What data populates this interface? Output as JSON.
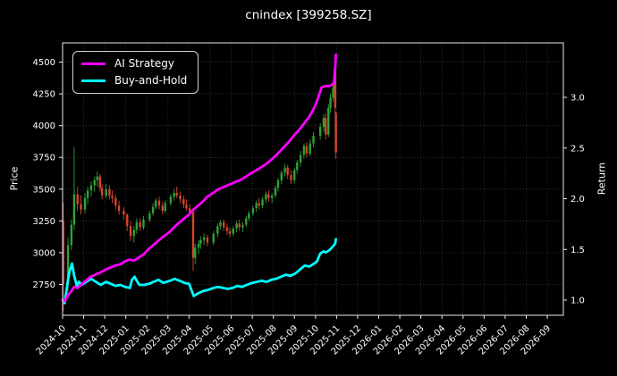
{
  "chart_data": {
    "type": "candlestick+line",
    "title": "cnindex [399258.SZ]",
    "ylabel_left": "Price",
    "ylabel_right": "Return",
    "grid": true,
    "legend_position": "upper left",
    "x_ticks": [
      "2024-10",
      "2024-11",
      "2024-12",
      "2025-01",
      "2025-02",
      "2025-03",
      "2025-04",
      "2025-05",
      "2025-06",
      "2025-07",
      "2025-08",
      "2025-09",
      "2025-10",
      "2025-11",
      "2025-12",
      "2026-01",
      "2026-02",
      "2026-03",
      "2026-04",
      "2026-05",
      "2026-06",
      "2026-07",
      "2026-08",
      "2026-09"
    ],
    "price_ticks": [
      2750,
      3000,
      3250,
      3500,
      3750,
      4000,
      4250,
      4500
    ],
    "return_ticks": [
      1.0,
      1.5,
      2.0,
      2.5,
      3.0
    ],
    "ylim_price": [
      2508,
      4651
    ],
    "ylim_return": [
      0.85,
      3.54
    ],
    "colors": {
      "up": "#2fa236",
      "down": "#d5452f",
      "ai_strategy": "#ff00ff",
      "buy_and_hold": "#00ffff",
      "background": "#000000",
      "text": "#ffffff"
    },
    "legend": [
      {
        "label": "AI Strategy",
        "color": "#ff00ff"
      },
      {
        "label": "Buy-and-Hold",
        "color": "#00ffff"
      }
    ],
    "candles": [
      [
        "2024-10-02",
        3250,
        3390,
        2540,
        2750
      ],
      [
        "2024-10-09",
        2750,
        3120,
        2700,
        3060
      ],
      [
        "2024-10-14",
        3060,
        3260,
        3020,
        3220
      ],
      [
        "2024-10-18",
        3220,
        3830,
        3180,
        3460
      ],
      [
        "2024-10-23",
        3460,
        3520,
        3330,
        3380
      ],
      [
        "2024-10-28",
        3380,
        3450,
        3300,
        3340
      ],
      [
        "2024-11-03",
        3340,
        3470,
        3310,
        3430
      ],
      [
        "2024-11-07",
        3430,
        3520,
        3380,
        3490
      ],
      [
        "2024-11-12",
        3490,
        3560,
        3440,
        3530
      ],
      [
        "2024-11-17",
        3530,
        3600,
        3480,
        3570
      ],
      [
        "2024-11-21",
        3570,
        3640,
        3520,
        3600
      ],
      [
        "2024-11-25",
        3600,
        3620,
        3480,
        3510
      ],
      [
        "2024-11-28",
        3510,
        3540,
        3420,
        3450
      ],
      [
        "2024-12-03",
        3450,
        3540,
        3430,
        3500
      ],
      [
        "2024-12-08",
        3500,
        3530,
        3420,
        3450
      ],
      [
        "2024-12-12",
        3450,
        3490,
        3390,
        3430
      ],
      [
        "2024-12-17",
        3430,
        3460,
        3340,
        3370
      ],
      [
        "2024-12-22",
        3370,
        3410,
        3300,
        3330
      ],
      [
        "2024-12-29",
        3330,
        3360,
        3260,
        3300
      ],
      [
        "2025-01-03",
        3300,
        3310,
        3170,
        3210
      ],
      [
        "2025-01-08",
        3210,
        3250,
        3090,
        3130
      ],
      [
        "2025-01-13",
        3130,
        3210,
        3080,
        3180
      ],
      [
        "2025-01-17",
        3180,
        3270,
        3150,
        3240
      ],
      [
        "2025-01-22",
        3240,
        3270,
        3170,
        3200
      ],
      [
        "2025-01-27",
        3200,
        3290,
        3180,
        3260
      ],
      [
        "2025-02-05",
        3260,
        3330,
        3240,
        3310
      ],
      [
        "2025-02-10",
        3310,
        3390,
        3290,
        3360
      ],
      [
        "2025-02-14",
        3360,
        3430,
        3340,
        3410
      ],
      [
        "2025-02-19",
        3410,
        3440,
        3340,
        3370
      ],
      [
        "2025-02-24",
        3370,
        3400,
        3300,
        3330
      ],
      [
        "2025-02-28",
        3330,
        3410,
        3310,
        3390
      ],
      [
        "2025-03-05",
        3390,
        3460,
        3370,
        3440
      ],
      [
        "2025-03-10",
        3440,
        3500,
        3410,
        3470
      ],
      [
        "2025-03-14",
        3470,
        3520,
        3430,
        3450
      ],
      [
        "2025-03-19",
        3450,
        3480,
        3390,
        3420
      ],
      [
        "2025-03-24",
        3420,
        3450,
        3350,
        3380
      ],
      [
        "2025-03-28",
        3380,
        3420,
        3330,
        3350
      ],
      [
        "2025-04-02",
        3350,
        3380,
        3290,
        3320
      ],
      [
        "2025-04-07",
        3320,
        3330,
        2855,
        2960
      ],
      [
        "2025-04-10",
        2960,
        3070,
        2910,
        3040
      ],
      [
        "2025-04-15",
        3040,
        3100,
        2990,
        3070
      ],
      [
        "2025-04-18",
        3070,
        3130,
        3030,
        3100
      ],
      [
        "2025-04-23",
        3100,
        3150,
        3060,
        3120
      ],
      [
        "2025-04-28",
        3120,
        3140,
        3050,
        3080
      ],
      [
        "2025-05-06",
        3080,
        3170,
        3060,
        3150
      ],
      [
        "2025-05-12",
        3150,
        3230,
        3120,
        3210
      ],
      [
        "2025-05-16",
        3210,
        3260,
        3180,
        3240
      ],
      [
        "2025-05-21",
        3240,
        3260,
        3170,
        3200
      ],
      [
        "2025-05-26",
        3200,
        3230,
        3140,
        3170
      ],
      [
        "2025-05-30",
        3170,
        3200,
        3120,
        3150
      ],
      [
        "2025-06-04",
        3150,
        3210,
        3130,
        3190
      ],
      [
        "2025-06-09",
        3190,
        3250,
        3160,
        3230
      ],
      [
        "2025-06-13",
        3230,
        3260,
        3170,
        3200
      ],
      [
        "2025-06-18",
        3200,
        3240,
        3160,
        3220
      ],
      [
        "2025-06-23",
        3220,
        3290,
        3200,
        3270
      ],
      [
        "2025-06-27",
        3270,
        3330,
        3250,
        3310
      ],
      [
        "2025-07-02",
        3310,
        3370,
        3290,
        3350
      ],
      [
        "2025-07-07",
        3350,
        3410,
        3320,
        3390
      ],
      [
        "2025-07-11",
        3390,
        3430,
        3340,
        3370
      ],
      [
        "2025-07-16",
        3370,
        3440,
        3350,
        3420
      ],
      [
        "2025-07-21",
        3420,
        3480,
        3390,
        3460
      ],
      [
        "2025-07-25",
        3460,
        3490,
        3400,
        3430
      ],
      [
        "2025-07-30",
        3430,
        3470,
        3390,
        3450
      ],
      [
        "2025-08-04",
        3450,
        3530,
        3430,
        3510
      ],
      [
        "2025-08-08",
        3510,
        3590,
        3480,
        3570
      ],
      [
        "2025-08-13",
        3570,
        3650,
        3540,
        3630
      ],
      [
        "2025-08-18",
        3630,
        3700,
        3600,
        3670
      ],
      [
        "2025-08-22",
        3670,
        3690,
        3580,
        3610
      ],
      [
        "2025-08-27",
        3610,
        3650,
        3540,
        3570
      ],
      [
        "2025-09-01",
        3570,
        3670,
        3550,
        3650
      ],
      [
        "2025-09-05",
        3650,
        3730,
        3620,
        3710
      ],
      [
        "2025-09-10",
        3710,
        3800,
        3680,
        3770
      ],
      [
        "2025-09-15",
        3770,
        3860,
        3740,
        3840
      ],
      [
        "2025-09-19",
        3840,
        3870,
        3750,
        3780
      ],
      [
        "2025-09-24",
        3780,
        3890,
        3760,
        3860
      ],
      [
        "2025-09-29",
        3860,
        3950,
        3830,
        3920
      ],
      [
        "2025-10-08",
        3920,
        4020,
        3890,
        3990
      ],
      [
        "2025-10-13",
        3990,
        4090,
        3950,
        4060
      ],
      [
        "2025-10-16",
        4060,
        4100,
        3890,
        3930
      ],
      [
        "2025-10-20",
        3930,
        4170,
        3910,
        4140
      ],
      [
        "2025-10-23",
        4140,
        4250,
        4100,
        4220
      ],
      [
        "2025-10-27",
        4220,
        4340,
        4190,
        4300
      ],
      [
        "2025-10-29",
        4300,
        4465,
        4270,
        4430
      ],
      [
        "2025-10-30",
        4430,
        4450,
        4090,
        4140
      ],
      [
        "2025-10-31",
        4100,
        4110,
        3740,
        3790
      ]
    ],
    "series": [
      {
        "name": "AI Strategy",
        "axis": "return",
        "color": "#ff00ff",
        "points": [
          [
            "2024-10-01",
            1.0
          ],
          [
            "2024-10-04",
            0.99
          ],
          [
            "2024-10-09",
            1.05
          ],
          [
            "2024-10-14",
            1.09
          ],
          [
            "2024-10-18",
            1.13
          ],
          [
            "2024-10-23",
            1.12
          ],
          [
            "2024-10-28",
            1.15
          ],
          [
            "2024-11-04",
            1.19
          ],
          [
            "2024-11-11",
            1.23
          ],
          [
            "2024-11-18",
            1.25
          ],
          [
            "2024-11-25",
            1.27
          ],
          [
            "2024-12-02",
            1.3
          ],
          [
            "2024-12-09",
            1.32
          ],
          [
            "2024-12-16",
            1.34
          ],
          [
            "2024-12-23",
            1.35
          ],
          [
            "2024-12-30",
            1.38
          ],
          [
            "2025-01-06",
            1.4
          ],
          [
            "2025-01-13",
            1.39
          ],
          [
            "2025-01-20",
            1.42
          ],
          [
            "2025-01-27",
            1.45
          ],
          [
            "2025-02-03",
            1.5
          ],
          [
            "2025-02-10",
            1.54
          ],
          [
            "2025-02-17",
            1.58
          ],
          [
            "2025-02-24",
            1.62
          ],
          [
            "2025-03-03",
            1.67
          ],
          [
            "2025-03-10",
            1.72
          ],
          [
            "2025-03-17",
            1.76
          ],
          [
            "2025-03-24",
            1.8
          ],
          [
            "2025-03-31",
            1.84
          ],
          [
            "2025-04-07",
            1.89
          ],
          [
            "2025-04-14",
            1.93
          ],
          [
            "2025-04-21",
            1.97
          ],
          [
            "2025-04-28",
            2.02
          ],
          [
            "2025-05-06",
            2.06
          ],
          [
            "2025-05-12",
            2.09
          ],
          [
            "2025-05-19",
            2.11
          ],
          [
            "2025-05-26",
            2.13
          ],
          [
            "2025-06-02",
            2.15
          ],
          [
            "2025-06-09",
            2.17
          ],
          [
            "2025-06-16",
            2.19
          ],
          [
            "2025-06-23",
            2.22
          ],
          [
            "2025-06-30",
            2.25
          ],
          [
            "2025-07-07",
            2.28
          ],
          [
            "2025-07-14",
            2.31
          ],
          [
            "2025-07-21",
            2.34
          ],
          [
            "2025-07-28",
            2.38
          ],
          [
            "2025-08-04",
            2.42
          ],
          [
            "2025-08-11",
            2.47
          ],
          [
            "2025-08-18",
            2.52
          ],
          [
            "2025-08-25",
            2.57
          ],
          [
            "2025-09-01",
            2.63
          ],
          [
            "2025-09-08",
            2.68
          ],
          [
            "2025-09-15",
            2.74
          ],
          [
            "2025-09-22",
            2.8
          ],
          [
            "2025-09-29",
            2.88
          ],
          [
            "2025-10-03",
            2.96
          ],
          [
            "2025-10-08",
            3.06
          ],
          [
            "2025-10-10",
            3.1
          ],
          [
            "2025-10-15",
            3.11
          ],
          [
            "2025-10-21",
            3.11
          ],
          [
            "2025-10-24",
            3.12
          ],
          [
            "2025-10-28",
            3.14
          ],
          [
            "2025-10-30",
            3.3
          ],
          [
            "2025-10-31",
            3.42
          ]
        ]
      },
      {
        "name": "Buy-and-Hold",
        "axis": "return",
        "color": "#00ffff",
        "points": [
          [
            "2024-10-01",
            1.0
          ],
          [
            "2024-10-04",
            0.97
          ],
          [
            "2024-10-09",
            1.2
          ],
          [
            "2024-10-11",
            1.28
          ],
          [
            "2024-10-15",
            1.36
          ],
          [
            "2024-10-18",
            1.24
          ],
          [
            "2024-10-22",
            1.14
          ],
          [
            "2024-10-25",
            1.18
          ],
          [
            "2024-10-29",
            1.15
          ],
          [
            "2024-11-05",
            1.18
          ],
          [
            "2024-11-12",
            1.21
          ],
          [
            "2024-11-19",
            1.18
          ],
          [
            "2024-11-26",
            1.15
          ],
          [
            "2024-12-03",
            1.18
          ],
          [
            "2024-12-10",
            1.16
          ],
          [
            "2024-12-17",
            1.14
          ],
          [
            "2024-12-24",
            1.15
          ],
          [
            "2024-12-31",
            1.13
          ],
          [
            "2025-01-07",
            1.12
          ],
          [
            "2025-01-10",
            1.2
          ],
          [
            "2025-01-14",
            1.23
          ],
          [
            "2025-01-17",
            1.19
          ],
          [
            "2025-01-21",
            1.15
          ],
          [
            "2025-01-28",
            1.15
          ],
          [
            "2025-02-04",
            1.16
          ],
          [
            "2025-02-11",
            1.18
          ],
          [
            "2025-02-18",
            1.2
          ],
          [
            "2025-02-25",
            1.17
          ],
          [
            "2025-03-04",
            1.19
          ],
          [
            "2025-03-11",
            1.21
          ],
          [
            "2025-03-18",
            1.19
          ],
          [
            "2025-03-25",
            1.17
          ],
          [
            "2025-04-01",
            1.16
          ],
          [
            "2025-04-08",
            1.04
          ],
          [
            "2025-04-15",
            1.07
          ],
          [
            "2025-04-22",
            1.09
          ],
          [
            "2025-04-29",
            1.1
          ],
          [
            "2025-05-06",
            1.12
          ],
          [
            "2025-05-13",
            1.13
          ],
          [
            "2025-05-20",
            1.12
          ],
          [
            "2025-05-27",
            1.11
          ],
          [
            "2025-06-03",
            1.12
          ],
          [
            "2025-06-10",
            1.14
          ],
          [
            "2025-06-17",
            1.13
          ],
          [
            "2025-06-24",
            1.15
          ],
          [
            "2025-07-01",
            1.17
          ],
          [
            "2025-07-08",
            1.18
          ],
          [
            "2025-07-15",
            1.19
          ],
          [
            "2025-07-22",
            1.18
          ],
          [
            "2025-07-29",
            1.2
          ],
          [
            "2025-08-05",
            1.21
          ],
          [
            "2025-08-12",
            1.23
          ],
          [
            "2025-08-19",
            1.25
          ],
          [
            "2025-08-26",
            1.24
          ],
          [
            "2025-09-02",
            1.26
          ],
          [
            "2025-09-09",
            1.3
          ],
          [
            "2025-09-16",
            1.34
          ],
          [
            "2025-09-23",
            1.33
          ],
          [
            "2025-09-30",
            1.36
          ],
          [
            "2025-10-03",
            1.38
          ],
          [
            "2025-10-08",
            1.46
          ],
          [
            "2025-10-13",
            1.48
          ],
          [
            "2025-10-16",
            1.47
          ],
          [
            "2025-10-21",
            1.49
          ],
          [
            "2025-10-24",
            1.51
          ],
          [
            "2025-10-28",
            1.54
          ],
          [
            "2025-10-30",
            1.56
          ],
          [
            "2025-10-31",
            1.6
          ]
        ]
      }
    ]
  }
}
